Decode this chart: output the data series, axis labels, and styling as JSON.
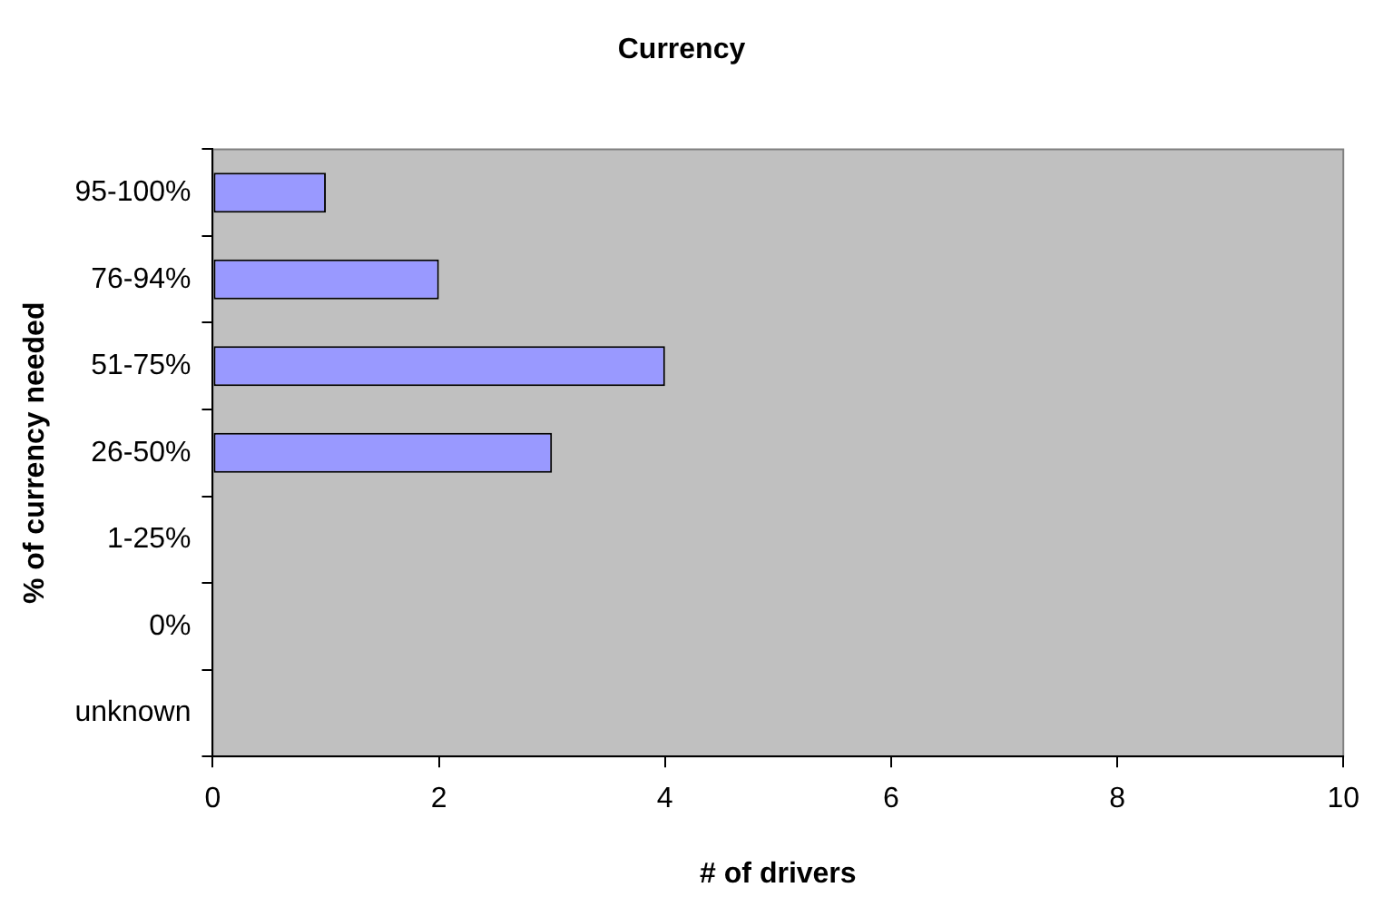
{
  "chart_data": {
    "type": "bar",
    "orientation": "horizontal",
    "title": "Currency",
    "xlabel": "# of drivers",
    "ylabel": "% of currency needed",
    "categories": [
      "95-100%",
      "76-94%",
      "51-75%",
      "26-50%",
      "1-25%",
      "0%",
      "unknown"
    ],
    "values": [
      1,
      2,
      4,
      3,
      0,
      0,
      0
    ],
    "color": "#9999ff",
    "xlim": [
      0,
      10
    ],
    "xticks": [
      0,
      2,
      4,
      6,
      8,
      10
    ],
    "grid": false,
    "legend": false
  }
}
